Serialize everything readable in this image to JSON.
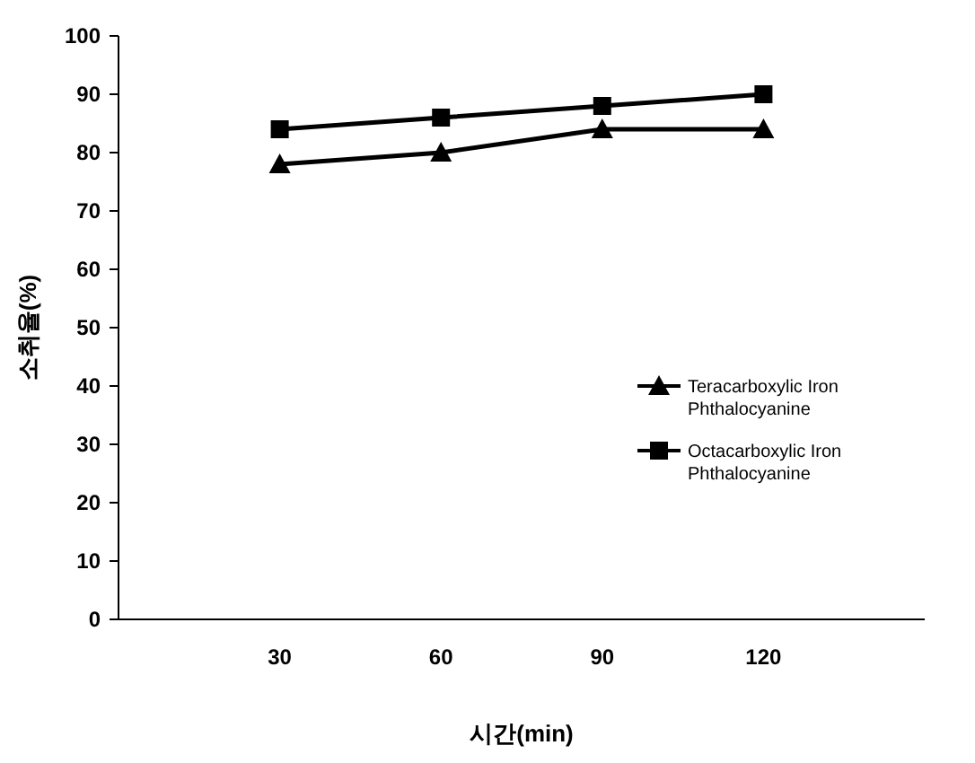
{
  "chart_data": {
    "type": "line",
    "xlabel": "시간(min)",
    "ylabel": "소취율(%)",
    "categories": [
      "30",
      "60",
      "90",
      "120"
    ],
    "ylim": [
      0,
      100
    ],
    "yticks": [
      0,
      10,
      20,
      30,
      40,
      50,
      60,
      70,
      80,
      90,
      100
    ],
    "grid": false,
    "legend": "right",
    "line_style": "solid",
    "series": [
      {
        "name": "Teracarboxylic Iron Phthalocyanine",
        "color": "#000000",
        "marker": "triangle",
        "values": [
          78,
          80,
          84,
          84
        ]
      },
      {
        "name": "Octacarboxylic Iron Phthalocyanine",
        "color": "#000000",
        "marker": "square",
        "values": [
          84,
          86,
          88,
          90
        ]
      }
    ]
  }
}
